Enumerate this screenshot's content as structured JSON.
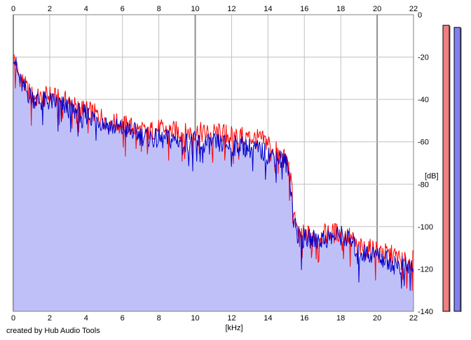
{
  "chart_data": {
    "type": "line",
    "xlabel": "[kHz]",
    "ylabel": "[dB]",
    "xlim": [
      0,
      22
    ],
    "ylim": [
      -140,
      0
    ],
    "x_ticks": [
      0,
      2,
      4,
      6,
      8,
      10,
      12,
      14,
      16,
      18,
      20,
      22
    ],
    "y_ticks": [
      0,
      -20,
      -40,
      -60,
      -80,
      -100,
      -120,
      -140
    ],
    "grid": true,
    "fill_color": "#c0c0f8",
    "series": [
      {
        "color": "#ff0000",
        "x": [
          0,
          0.2,
          0.4,
          0.6,
          0.8,
          1,
          1.5,
          2,
          2.5,
          3,
          3.5,
          4,
          4.5,
          5,
          5.5,
          6,
          6.5,
          7,
          7.5,
          8,
          8.5,
          9,
          9.5,
          10,
          10.5,
          11,
          11.5,
          12,
          12.5,
          13,
          13.5,
          14,
          14.5,
          15,
          15.2,
          15.4,
          15.6,
          16,
          16.5,
          17,
          17.5,
          18,
          18.5,
          19,
          19.5,
          20,
          20.5,
          21,
          21.5,
          22
        ],
        "values": [
          -20,
          -26,
          -30,
          -33,
          -36,
          -38,
          -40,
          -38,
          -40,
          -41,
          -44,
          -45,
          -47,
          -49,
          -51,
          -52,
          -53,
          -55,
          -55,
          -54,
          -55,
          -55,
          -56,
          -55,
          -56,
          -56,
          -56,
          -57,
          -57,
          -58,
          -59,
          -60,
          -65,
          -69,
          -75,
          -90,
          -103,
          -104,
          -104,
          -104,
          -103,
          -103,
          -105,
          -110,
          -111,
          -110,
          -113,
          -114,
          -117,
          -116
        ]
      },
      {
        "color": "#0000cc",
        "x": [
          0,
          0.2,
          0.4,
          0.6,
          0.8,
          1,
          1.5,
          2,
          2.5,
          3,
          3.5,
          4,
          4.5,
          5,
          5.5,
          6,
          6.5,
          7,
          7.5,
          8,
          8.5,
          9,
          9.5,
          10,
          10.5,
          11,
          11.5,
          12,
          12.5,
          13,
          13.5,
          14,
          14.5,
          15,
          15.2,
          15.4,
          15.6,
          16,
          16.5,
          17,
          17.5,
          18,
          18.5,
          19,
          19.5,
          20,
          20.5,
          21,
          21.5,
          22
        ],
        "values": [
          -17,
          -27,
          -32,
          -35,
          -37,
          -39,
          -41,
          -41,
          -42,
          -44,
          -46,
          -47,
          -49,
          -51,
          -53,
          -54,
          -55,
          -57,
          -58,
          -59,
          -59,
          -59,
          -60,
          -60,
          -61,
          -61,
          -61,
          -62,
          -62,
          -63,
          -64,
          -66,
          -67,
          -70,
          -77,
          -92,
          -104,
          -106,
          -106,
          -106,
          -105,
          -104,
          -107,
          -112,
          -113,
          -113,
          -116,
          -118,
          -119,
          -119
        ]
      }
    ],
    "level_meters": [
      {
        "color": "#f08080",
        "value": -5
      },
      {
        "color": "#8080f0",
        "value": -6
      }
    ]
  },
  "footer": {
    "credit": "created by Hub Audio Tools"
  }
}
